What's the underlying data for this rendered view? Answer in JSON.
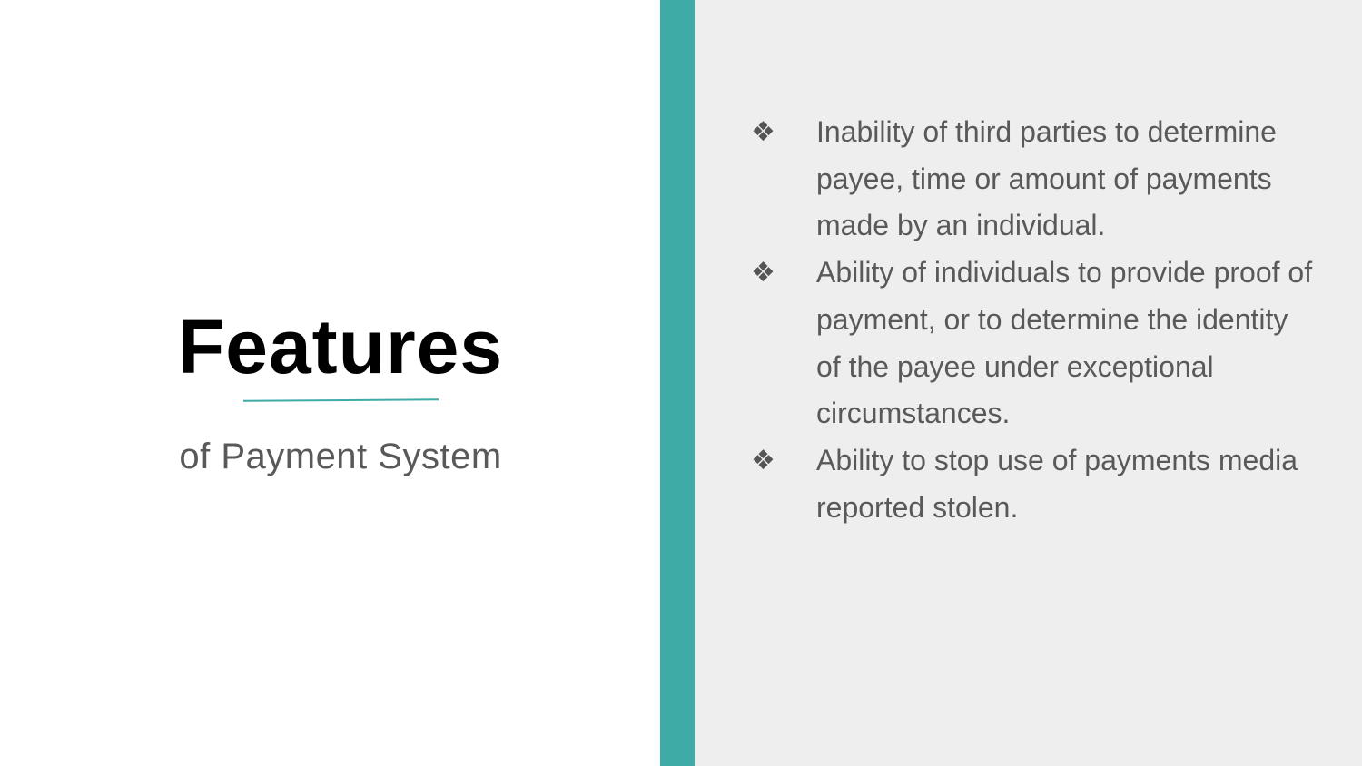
{
  "slide": {
    "title": "Features",
    "subtitle": "of Payment System",
    "accent_color": "#3eaba7",
    "bullet_icon": "diamond-bullet-icon",
    "bullets": [
      {
        "marker": "❖",
        "text": "Inability of third parties to determine payee, time or amount of payments made by an individual."
      },
      {
        "marker": "❖",
        "text": "Ability of individuals to provide proof of payment, or to determine the identity of the payee under exceptional circumstances."
      },
      {
        "marker": "❖",
        "text": "Ability to stop use of payments media reported stolen."
      }
    ]
  }
}
